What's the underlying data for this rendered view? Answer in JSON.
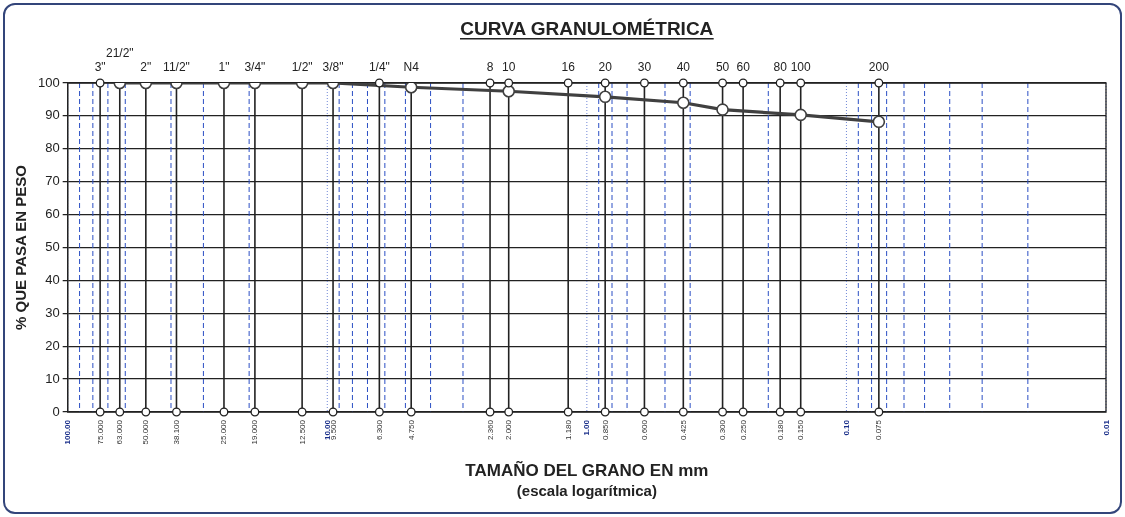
{
  "chart_data": {
    "type": "line",
    "title": "CURVA GRANULOMÉTRICA",
    "xlabel": "TAMAÑO DEL GRANO EN mm\n(escala logarítmica)",
    "ylabel": "% QUE PASA EN PESO",
    "log": "x",
    "grid": true,
    "marker": "circle",
    "line_style": "solid",
    "xlim": [
      100,
      0.01
    ],
    "ylim": [
      0,
      100
    ],
    "yticks": [
      0,
      10,
      20,
      30,
      40,
      50,
      60,
      70,
      80,
      90,
      100
    ],
    "xticks": [
      {
        "value": 100,
        "label": "100.00"
      },
      {
        "value": 90,
        "label": null
      },
      {
        "value": 80,
        "label": null
      },
      {
        "value": 75,
        "label": "75.000"
      },
      {
        "value": 70,
        "label": null
      },
      {
        "value": 63,
        "label": "63.000"
      },
      {
        "value": 60,
        "label": null
      },
      {
        "value": 50,
        "label": "50.000"
      },
      {
        "value": 40,
        "label": null
      },
      {
        "value": 38.1,
        "label": "38.100"
      },
      {
        "value": 30,
        "label": null
      },
      {
        "value": 25,
        "label": "25.000"
      },
      {
        "value": 20,
        "label": null
      },
      {
        "value": 19,
        "label": "19.000"
      },
      {
        "value": 12.5,
        "label": "12.500"
      },
      {
        "value": 10,
        "label": "10.00"
      },
      {
        "value": 9.5,
        "label": "9.500"
      },
      {
        "value": 9,
        "label": null
      },
      {
        "value": 8,
        "label": null
      },
      {
        "value": 7,
        "label": null
      },
      {
        "value": 6.3,
        "label": "6.300"
      },
      {
        "value": 6,
        "label": null
      },
      {
        "value": 5,
        "label": null
      },
      {
        "value": 4.75,
        "label": "4.750"
      },
      {
        "value": 4,
        "label": null
      },
      {
        "value": 3,
        "label": null
      },
      {
        "value": 2.36,
        "label": "2.360"
      },
      {
        "value": 2,
        "label": "2.000"
      },
      {
        "value": 1.18,
        "label": "1.180"
      },
      {
        "value": 1,
        "label": "1.00"
      },
      {
        "value": 0.9,
        "label": null
      },
      {
        "value": 0.85,
        "label": "0.850"
      },
      {
        "value": 0.8,
        "label": null
      },
      {
        "value": 0.7,
        "label": null
      },
      {
        "value": 0.6,
        "label": "0.600"
      },
      {
        "value": 0.5,
        "label": null
      },
      {
        "value": 0.425,
        "label": "0.425"
      },
      {
        "value": 0.4,
        "label": null
      },
      {
        "value": 0.3,
        "label": "0.300"
      },
      {
        "value": 0.25,
        "label": "0.250"
      },
      {
        "value": 0.2,
        "label": null
      },
      {
        "value": 0.18,
        "label": "0.180"
      },
      {
        "value": 0.15,
        "label": "0.150"
      },
      {
        "value": 0.1,
        "label": "0.10"
      },
      {
        "value": 0.09,
        "label": null
      },
      {
        "value": 0.08,
        "label": null
      },
      {
        "value": 0.075,
        "label": "0.075"
      },
      {
        "value": 0.07,
        "label": null
      },
      {
        "value": 0.06,
        "label": null
      },
      {
        "value": 0.05,
        "label": null
      },
      {
        "value": 0.04,
        "label": null
      },
      {
        "value": 0.03,
        "label": null
      },
      {
        "value": 0.02,
        "label": null
      },
      {
        "value": 0.01,
        "label": "0.01"
      }
    ],
    "annotations": [
      {
        "text": "3\"",
        "x": 75,
        "y": 100
      },
      {
        "text": "21/2\"",
        "x": 63,
        "y": 100
      },
      {
        "text": "2\"",
        "x": 50,
        "y": 100
      },
      {
        "text": "11/2\"",
        "x": 38.1,
        "y": 100
      },
      {
        "text": "1\"",
        "x": 25,
        "y": 100
      },
      {
        "text": "3/4\"",
        "x": 19,
        "y": 100
      },
      {
        "text": "1/2\"",
        "x": 12.5,
        "y": 100
      },
      {
        "text": "3/8\"",
        "x": 9.5,
        "y": 100
      },
      {
        "text": "1/4\"",
        "x": 6.3,
        "y": 100
      },
      {
        "text": "N4",
        "x": 4.75,
        "y": 100
      },
      {
        "text": "8",
        "x": 2.36,
        "y": 100
      },
      {
        "text": "10",
        "x": 2,
        "y": 100
      },
      {
        "text": "16",
        "x": 1.18,
        "y": 100
      },
      {
        "text": "20",
        "x": 0.85,
        "y": 100
      },
      {
        "text": "30",
        "x": 0.6,
        "y": 100
      },
      {
        "text": "40",
        "x": 0.425,
        "y": 100
      },
      {
        "text": "50",
        "x": 0.3,
        "y": 100
      },
      {
        "text": "60",
        "x": 0.25,
        "y": 100
      },
      {
        "text": "80",
        "x": 0.18,
        "y": 100
      },
      {
        "text": "100",
        "x": 0.15,
        "y": 100
      },
      {
        "text": "200",
        "x": 0.075,
        "y": 100
      }
    ],
    "series": [
      {
        "color": "#404040",
        "x": [
          63,
          50,
          38.1,
          25,
          19,
          12.5,
          9.5,
          4.75,
          2,
          0.85,
          0.425,
          0.3,
          0.15,
          0.075
        ],
        "values": [
          100,
          100,
          100,
          100,
          100,
          100,
          100,
          98.7,
          97.5,
          95.8,
          94.0,
          91.9,
          90.3,
          88.2
        ]
      }
    ]
  }
}
